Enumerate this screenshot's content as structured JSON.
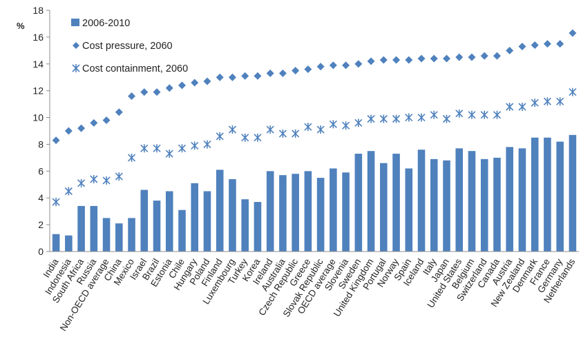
{
  "chart_data": {
    "type": "bar",
    "ylabel": "%",
    "ylim": [
      0,
      18
    ],
    "yticks": [
      "0",
      "2",
      "4",
      "6",
      "8",
      "10",
      "12",
      "14",
      "16",
      "18"
    ],
    "grid": false,
    "legend_position": "top-left",
    "categories": [
      "India",
      "Indonesia",
      "South Africa",
      "Russia",
      "Non-OECD average",
      "China",
      "Mexico",
      "Israel",
      "Brazil",
      "Estonia",
      "Chile",
      "Hungary",
      "Poland",
      "Finland",
      "Luxembourg",
      "Turkey",
      "Korea",
      "Ireland",
      "Australia",
      "Czech Republic",
      "Greece",
      "Slovak Republic",
      "OECD average",
      "Slovenia",
      "Sweden",
      "United Kingdom",
      "Portugal",
      "Norway",
      "Spain",
      "Iceland",
      "Italy",
      "Japan",
      "United States",
      "Belgium",
      "Switzerland",
      "Canada",
      "Austria",
      "New Zealand",
      "Denmark",
      "France",
      "Germany",
      "Netherlands"
    ],
    "series": [
      {
        "name": "2006-2010",
        "kind": "bar",
        "color": "#4f81bd",
        "values": [
          1.3,
          1.2,
          3.4,
          3.4,
          2.5,
          2.1,
          2.5,
          4.6,
          3.8,
          4.5,
          3.1,
          5.1,
          4.5,
          6.1,
          5.4,
          3.9,
          3.7,
          6.0,
          5.7,
          5.8,
          6.0,
          5.5,
          6.2,
          5.9,
          7.3,
          7.5,
          6.6,
          7.3,
          6.2,
          7.6,
          6.9,
          6.8,
          7.7,
          7.5,
          6.9,
          7.0,
          7.8,
          7.7,
          8.5,
          8.5,
          8.2,
          8.7
        ]
      },
      {
        "name": "Cost pressure, 2060",
        "kind": "diamond",
        "color": "#4f81bd",
        "values": [
          8.3,
          9.0,
          9.2,
          9.6,
          9.8,
          10.4,
          11.6,
          11.9,
          11.9,
          12.2,
          12.4,
          12.6,
          12.7,
          13.0,
          13.0,
          13.1,
          13.1,
          13.3,
          13.3,
          13.5,
          13.6,
          13.8,
          13.9,
          13.9,
          14.0,
          14.2,
          14.3,
          14.3,
          14.3,
          14.4,
          14.4,
          14.4,
          14.5,
          14.5,
          14.6,
          14.6,
          15.0,
          15.3,
          15.4,
          15.5,
          15.5,
          16.3
        ]
      },
      {
        "name": "Cost containment,  2060",
        "kind": "star",
        "color": "#4f81bd",
        "values": [
          3.7,
          4.5,
          5.1,
          5.4,
          5.3,
          5.6,
          7.0,
          7.7,
          7.7,
          7.3,
          7.7,
          7.9,
          8.0,
          8.6,
          9.1,
          8.5,
          8.5,
          9.1,
          8.8,
          8.8,
          9.3,
          9.1,
          9.5,
          9.4,
          9.6,
          9.9,
          9.9,
          9.9,
          10.0,
          10.0,
          10.2,
          9.9,
          10.3,
          10.2,
          10.2,
          10.2,
          10.8,
          10.8,
          11.1,
          11.2,
          11.2,
          11.9
        ]
      }
    ]
  }
}
